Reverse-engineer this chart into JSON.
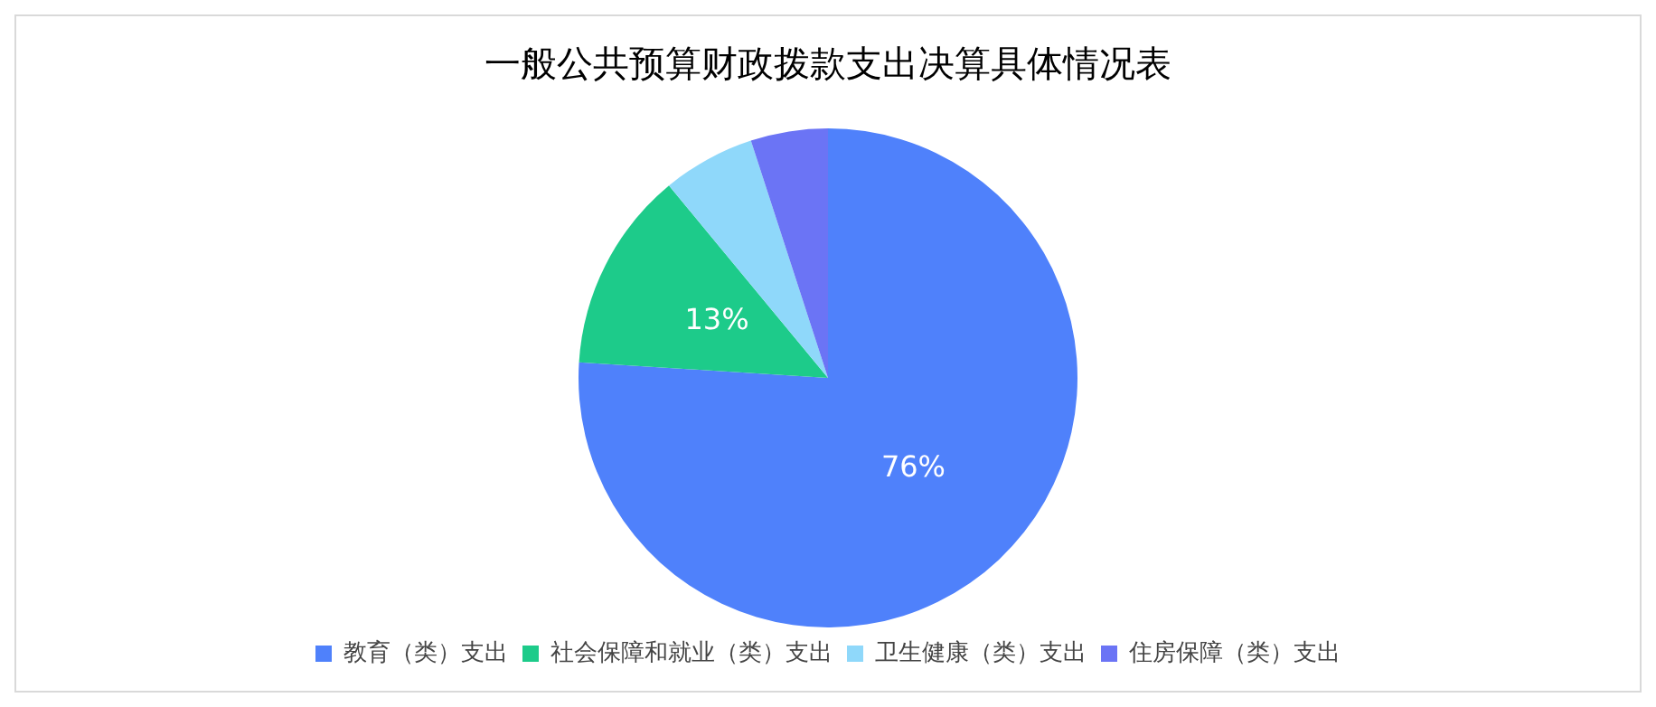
{
  "chart_data": {
    "type": "pie",
    "title": "一般公共预算财政拨款支出决算具体情况表",
    "categories": [
      "教育（类）支出",
      "社会保障和就业（类）支出",
      "卫生健康（类）支出",
      "住房保障（类）支出"
    ],
    "values": [
      76,
      13,
      6,
      5
    ],
    "colors": [
      "#4f81fb",
      "#1dcb8a",
      "#8fd8fa",
      "#6b74f5"
    ],
    "value_labels": [
      "76%",
      "13%",
      null,
      null
    ],
    "legend": "bottom"
  }
}
